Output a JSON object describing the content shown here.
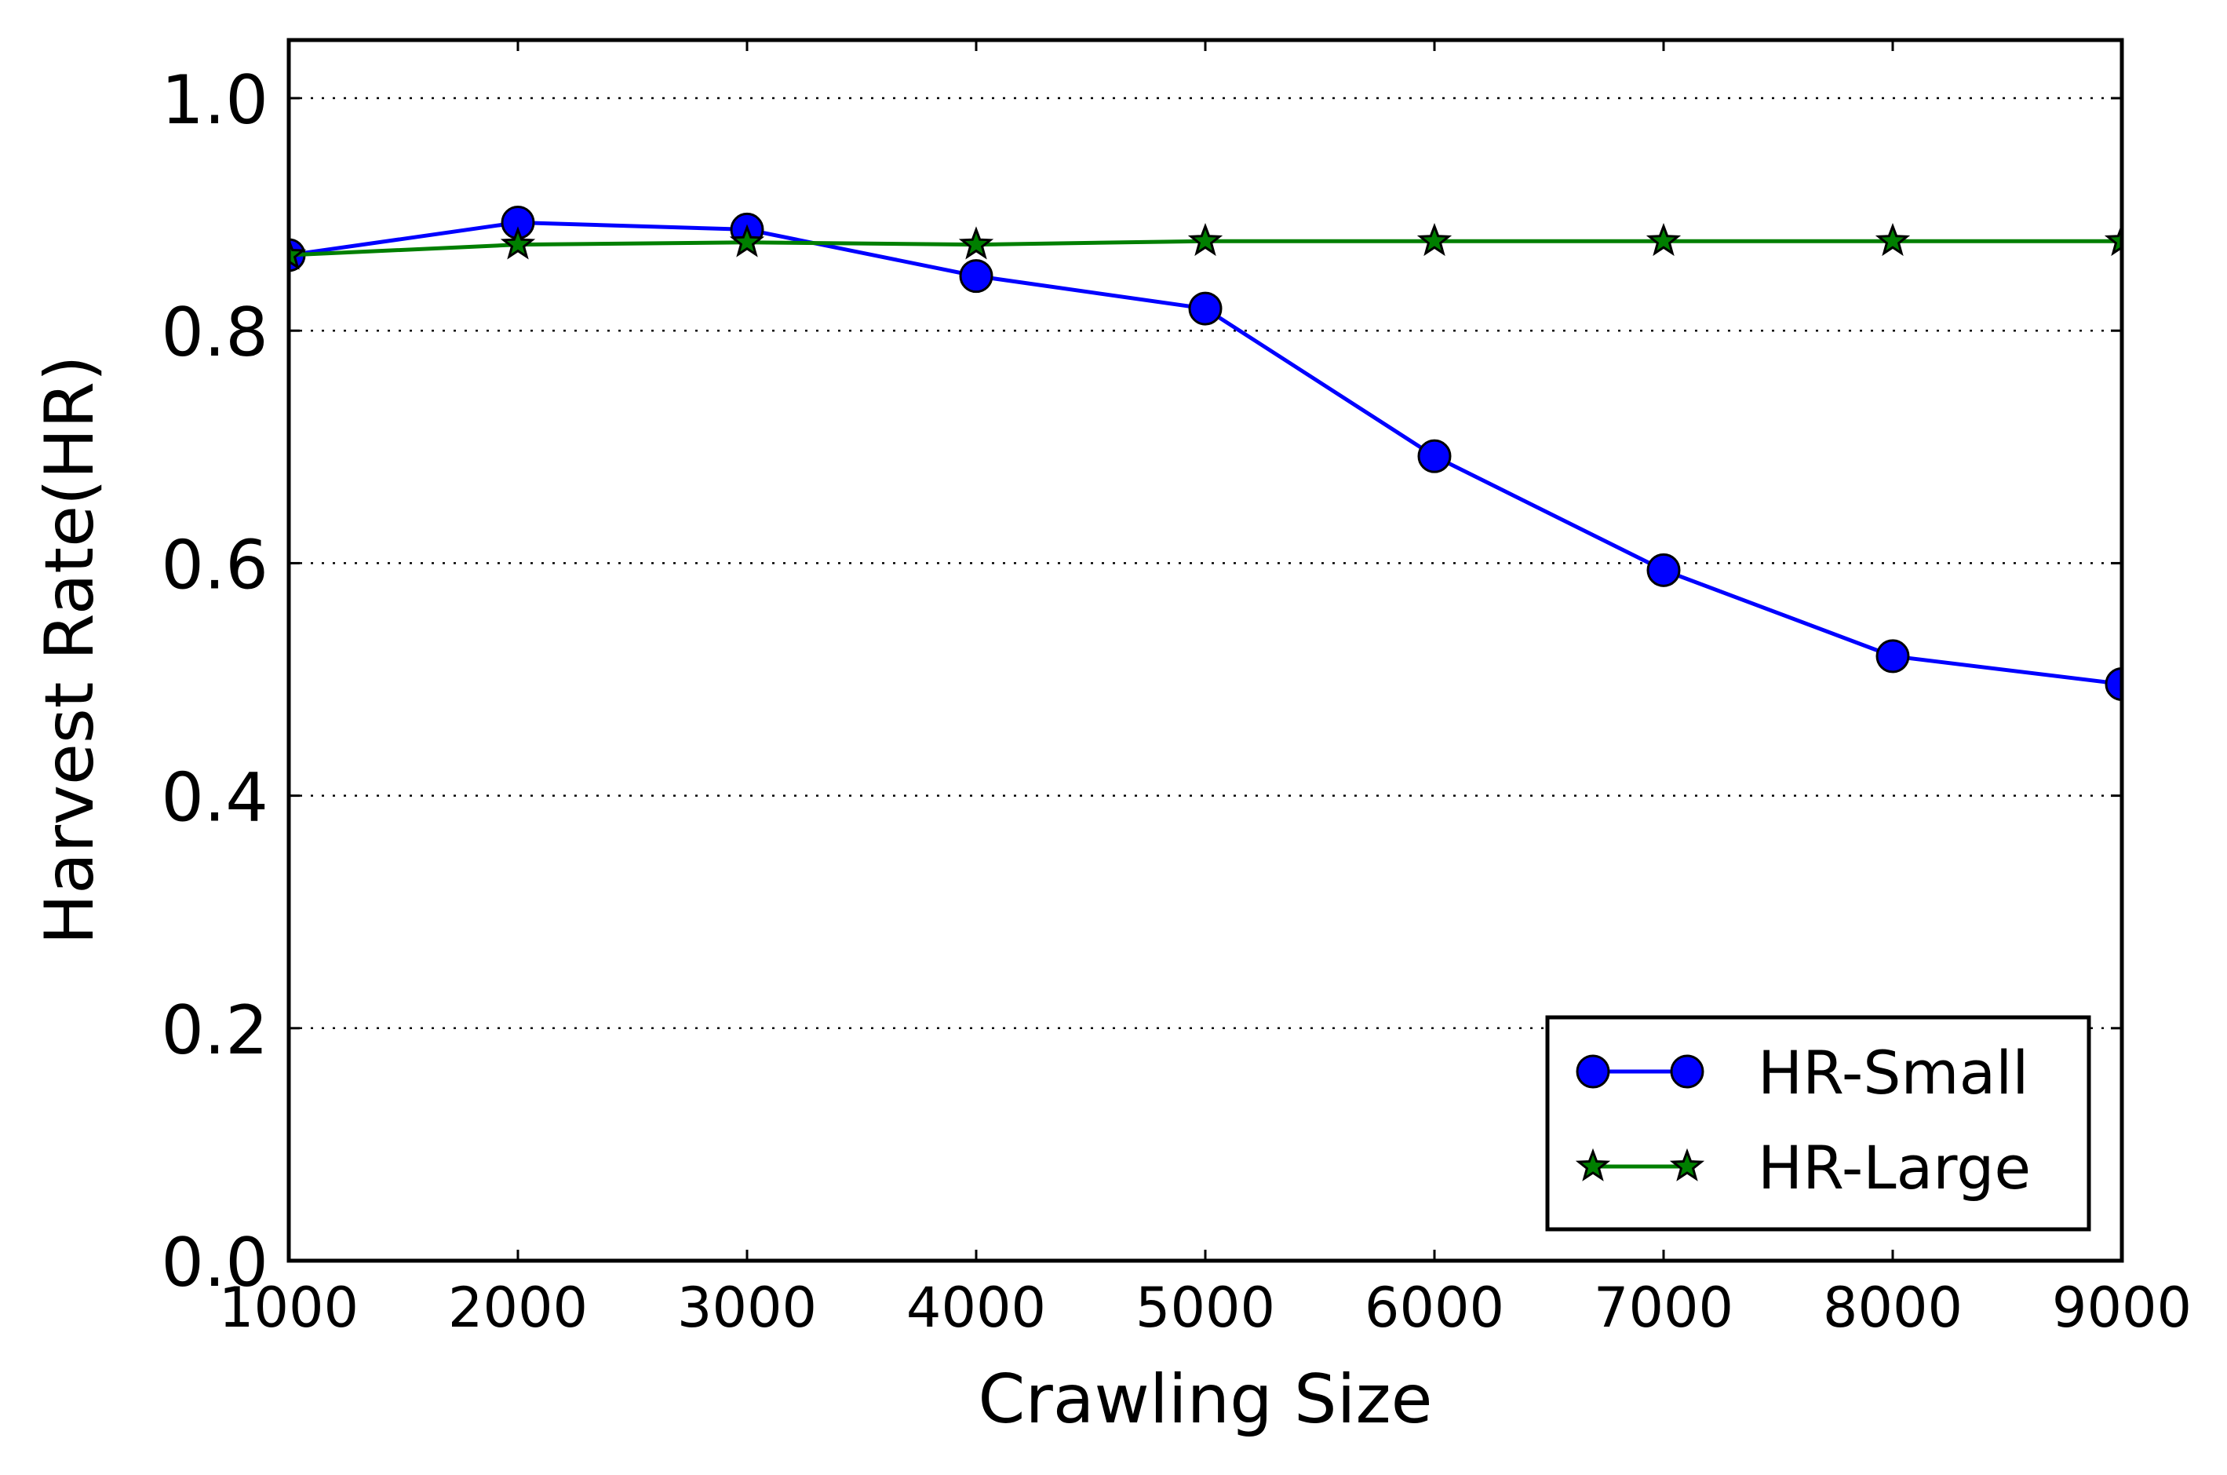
{
  "chart_data": {
    "type": "line",
    "title": "",
    "xlabel": "Crawling Size",
    "ylabel": "Harvest Rate(HR)",
    "x": [
      1000,
      2000,
      3000,
      4000,
      5000,
      6000,
      7000,
      8000,
      9000
    ],
    "xlim": [
      1000,
      9000
    ],
    "ylim": [
      0.0,
      1.05
    ],
    "xticks": [
      "1000",
      "2000",
      "3000",
      "4000",
      "5000",
      "6000",
      "7000",
      "8000",
      "9000"
    ],
    "yticks": [
      "0.0",
      "0.2",
      "0.4",
      "0.6",
      "0.8",
      "1.0"
    ],
    "ytick_values": [
      0.0,
      0.2,
      0.4,
      0.6,
      0.8,
      1.0
    ],
    "grid": "horizontal dotted",
    "legend_position": "lower-right",
    "series": [
      {
        "name": "HR-Small",
        "color": "#0000ff",
        "marker": "circle",
        "values": [
          0.865,
          0.893,
          0.887,
          0.847,
          0.819,
          0.692,
          0.594,
          0.52,
          0.496
        ]
      },
      {
        "name": "HR-Large",
        "color": "#007f00",
        "marker": "star",
        "values": [
          0.865,
          0.874,
          0.876,
          0.874,
          0.877,
          0.877,
          0.877,
          0.877,
          0.877
        ]
      }
    ]
  }
}
